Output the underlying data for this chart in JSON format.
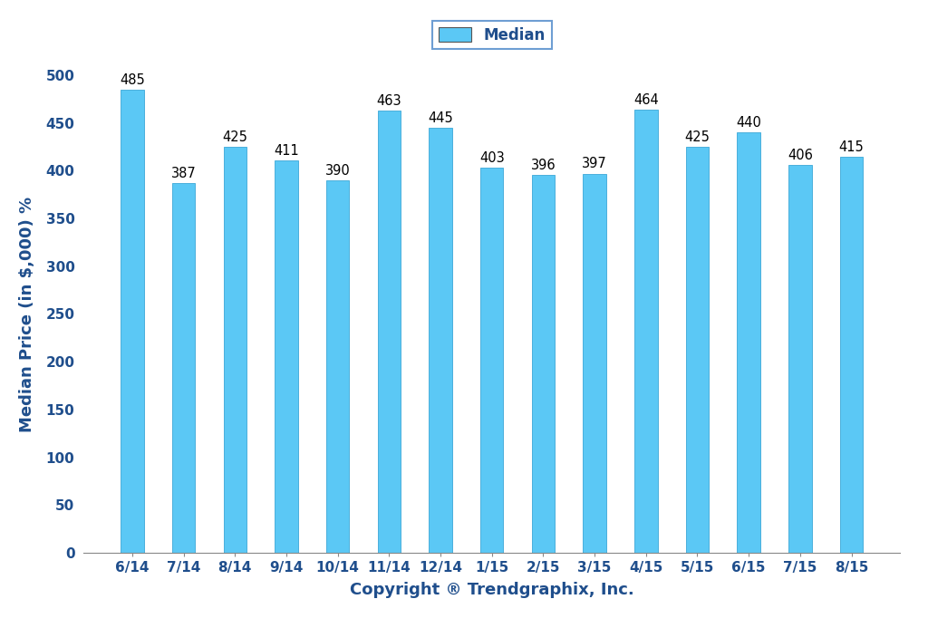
{
  "categories": [
    "6/14",
    "7/14",
    "8/14",
    "9/14",
    "10/14",
    "11/14",
    "12/14",
    "1/15",
    "2/15",
    "3/15",
    "4/15",
    "5/15",
    "6/15",
    "7/15",
    "8/15"
  ],
  "values": [
    485,
    387,
    425,
    411,
    390,
    463,
    445,
    403,
    396,
    397,
    464,
    425,
    440,
    406,
    415
  ],
  "bar_color": "#5BC8F5",
  "bar_edge_color": "#4AAFDC",
  "ylabel": "Median Price (in $,000) %",
  "xlabel": "Copyright ® Trendgraphix, Inc.",
  "ylim": [
    0,
    500
  ],
  "yticks": [
    0,
    50,
    100,
    150,
    200,
    250,
    300,
    350,
    400,
    450,
    500
  ],
  "legend_label": "Median",
  "legend_box_color": "#5BC8F5",
  "legend_box_edge_color": "#4A86C8",
  "background_color": "#ffffff",
  "bar_label_fontsize": 10.5,
  "axis_label_fontsize": 13,
  "tick_fontsize": 11,
  "legend_fontsize": 12,
  "tick_color": "#1F4E8C",
  "label_color": "#1F4E8C"
}
